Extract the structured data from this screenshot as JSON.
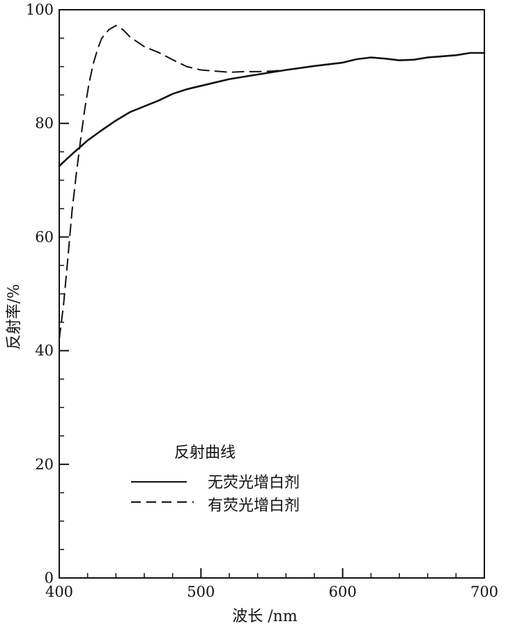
{
  "chart_data": {
    "type": "line",
    "title": "",
    "xlabel": "波长 /nm",
    "ylabel": "反射率/%",
    "xlim": [
      400,
      700
    ],
    "ylim": [
      0,
      100
    ],
    "x_ticks": [
      400,
      500,
      600,
      700
    ],
    "y_ticks": [
      0,
      20,
      40,
      60,
      80,
      100
    ],
    "grid": false,
    "legend": {
      "title": "反射曲线",
      "position": "lower-center"
    },
    "series": [
      {
        "name": "无荧光增白剂",
        "style": "solid",
        "points": [
          [
            400,
            72.5
          ],
          [
            410,
            74.8
          ],
          [
            420,
            77.0
          ],
          [
            430,
            78.8
          ],
          [
            440,
            80.5
          ],
          [
            450,
            82.0
          ],
          [
            460,
            83.0
          ],
          [
            470,
            84.0
          ],
          [
            480,
            85.2
          ],
          [
            490,
            86.0
          ],
          [
            500,
            86.6
          ],
          [
            520,
            87.8
          ],
          [
            540,
            88.6
          ],
          [
            560,
            89.4
          ],
          [
            580,
            90.1
          ],
          [
            600,
            90.7
          ],
          [
            610,
            91.3
          ],
          [
            620,
            91.6
          ],
          [
            630,
            91.4
          ],
          [
            640,
            91.1
          ],
          [
            650,
            91.2
          ],
          [
            660,
            91.6
          ],
          [
            670,
            91.8
          ],
          [
            680,
            92.0
          ],
          [
            690,
            92.4
          ],
          [
            700,
            92.4
          ]
        ]
      },
      {
        "name": "有荧光增白剂",
        "style": "dashed",
        "points": [
          [
            400,
            42.0
          ],
          [
            403,
            48.0
          ],
          [
            406,
            56.0
          ],
          [
            409,
            64.5
          ],
          [
            412,
            71.0
          ],
          [
            415,
            77.0
          ],
          [
            418,
            82.5
          ],
          [
            421,
            87.0
          ],
          [
            424,
            90.5
          ],
          [
            427,
            93.0
          ],
          [
            430,
            95.0
          ],
          [
            435,
            96.5
          ],
          [
            440,
            97.2
          ],
          [
            445,
            96.5
          ],
          [
            450,
            95.2
          ],
          [
            460,
            93.5
          ],
          [
            470,
            92.5
          ],
          [
            480,
            91.2
          ],
          [
            490,
            90.0
          ],
          [
            500,
            89.4
          ],
          [
            510,
            89.2
          ],
          [
            520,
            89.0
          ],
          [
            530,
            89.1
          ],
          [
            540,
            89.1
          ],
          [
            550,
            89.2
          ],
          [
            560,
            89.4
          ],
          [
            580,
            90.1
          ],
          [
            600,
            90.7
          ],
          [
            610,
            91.3
          ],
          [
            620,
            91.6
          ],
          [
            630,
            91.4
          ],
          [
            640,
            91.1
          ],
          [
            650,
            91.2
          ],
          [
            660,
            91.6
          ],
          [
            670,
            91.8
          ],
          [
            680,
            92.0
          ],
          [
            690,
            92.4
          ],
          [
            700,
            92.4
          ]
        ]
      }
    ]
  }
}
